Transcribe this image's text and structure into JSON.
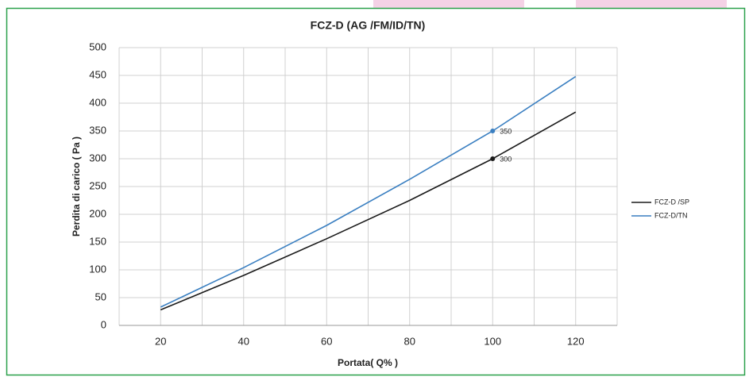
{
  "chart_data": {
    "type": "line",
    "title": "FCZ-D (AG /FM/ID/TN)",
    "x_label": "Portata( Q% )",
    "y_label": "Perdita di carico ( Pa )",
    "x": [
      20,
      40,
      60,
      80,
      100,
      120
    ],
    "series": [
      {
        "name": "FCZ-D /SP",
        "color": "#1a1a1a",
        "values": [
          28,
          90,
          156,
          225,
          300,
          384
        ],
        "labeled_points": [
          4
        ]
      },
      {
        "name": "FCZ-D/TN",
        "color": "#3a7fc1",
        "values": [
          33,
          104,
          180,
          263,
          350,
          448
        ],
        "labeled_points": [
          4
        ]
      }
    ],
    "xlim": [
      10,
      130
    ],
    "xticks": [
      20,
      40,
      60,
      80,
      100,
      120
    ],
    "ylim": [
      0,
      500
    ],
    "yticks": [
      0,
      50,
      100,
      150,
      200,
      250,
      300,
      350,
      400,
      450,
      500
    ],
    "grid": true,
    "legend": "right"
  }
}
